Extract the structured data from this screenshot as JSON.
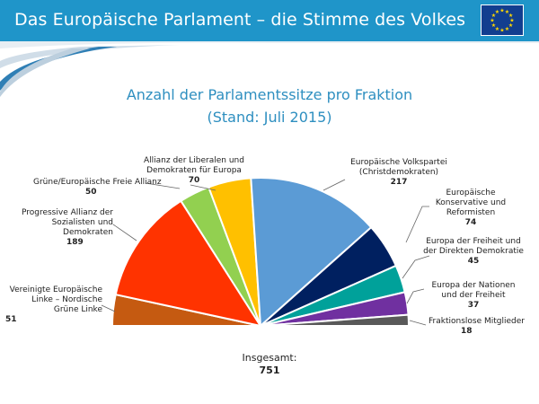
{
  "header": {
    "title": "Das Europäische Parlament – die Stimme des Volkes"
  },
  "icons": {
    "flag": "eu-flag-icon"
  },
  "colors": {
    "header": "#1f95c9",
    "title": "#2e8fc0"
  },
  "chart_data": {
    "type": "pie",
    "subtype": "half-donut",
    "title": "Anzahl der Parlamentssitze pro Fraktion",
    "subtitle": "(Stand: Juli 2015)",
    "total_label": "Insgesamt:",
    "total": 751,
    "slices": [
      {
        "label": "Vereinigte Europäische Linke – Nordische Grüne Linke",
        "value": 51,
        "color": "#c55a11"
      },
      {
        "label": "Progressive Allianz der Sozialisten und Demokraten",
        "value": 189,
        "color": "#ff3300"
      },
      {
        "label": "Grüne/Europäische Freie Allianz",
        "value": 50,
        "color": "#92d050"
      },
      {
        "label": "Allianz der Liberalen und Demokraten für Europa",
        "value": 70,
        "color": "#ffc000"
      },
      {
        "label": "Europäische Volkspartei (Christdemokraten)",
        "value": 217,
        "color": "#5b9bd5"
      },
      {
        "label": "Europäische Konservative und Reformisten",
        "value": 74,
        "color": "#002060"
      },
      {
        "label": "Europa der Freiheit und der Direkten Demokratie",
        "value": 45,
        "color": "#00a19a"
      },
      {
        "label": "Europa der Nationen und der Freiheit",
        "value": 37,
        "color": "#7030a0"
      },
      {
        "label": "Fraktionslose Mitglieder",
        "value": 18,
        "color": "#595959"
      }
    ]
  }
}
